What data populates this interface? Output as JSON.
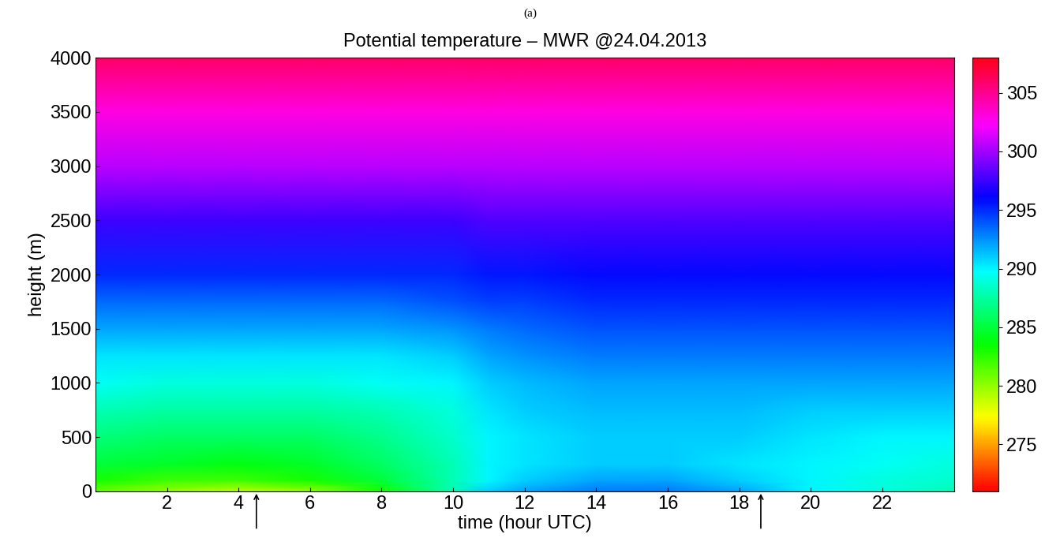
{
  "chart_data": {
    "type": "heatmap",
    "panel_label": "(a)",
    "title": "Potential temperature – MWR @24.04.2013",
    "xlabel": "time (hour UTC)",
    "ylabel": "height (m)",
    "x": [
      0,
      2,
      4,
      6,
      8,
      10,
      11,
      12,
      14,
      16,
      18,
      20,
      22,
      24
    ],
    "y": [
      0,
      100,
      250,
      500,
      750,
      1000,
      1250,
      1500,
      1750,
      2000,
      2500,
      3000,
      3500,
      4000
    ],
    "values": [
      [
        281,
        280,
        279,
        280,
        283,
        288,
        291,
        292,
        293,
        293,
        292,
        290,
        289,
        288
      ],
      [
        283,
        282,
        282,
        283,
        285,
        288,
        290,
        291,
        292,
        292,
        291,
        290,
        289,
        288.5
      ],
      [
        285,
        284.5,
        284,
        284.5,
        286,
        288,
        290,
        290.5,
        291,
        291,
        290.5,
        290,
        289.5,
        289
      ],
      [
        286.5,
        286,
        286,
        286,
        287,
        288.5,
        290,
        290.5,
        291,
        291,
        291,
        290.5,
        290,
        290
      ],
      [
        288,
        287.5,
        287.5,
        287.5,
        288,
        289,
        290.5,
        291,
        291.5,
        291.5,
        291.5,
        291,
        291,
        291
      ],
      [
        289.5,
        289,
        289,
        289,
        289.5,
        290,
        291,
        291.5,
        292,
        292,
        292,
        292,
        292,
        292
      ],
      [
        290.5,
        290.5,
        290.5,
        290.5,
        290.5,
        291,
        292,
        292.5,
        293,
        293,
        293,
        293,
        293,
        293
      ],
      [
        292,
        292,
        292,
        292,
        292,
        292.5,
        293,
        293.5,
        294,
        294,
        294,
        294,
        294,
        294
      ],
      [
        293.5,
        293.5,
        293.5,
        293.5,
        293.5,
        294,
        294.5,
        294.5,
        295,
        295,
        295,
        295,
        295,
        295
      ],
      [
        295,
        295,
        295,
        295,
        295,
        295,
        295.5,
        295.5,
        296,
        296,
        296,
        296,
        296,
        296
      ],
      [
        297.5,
        297.5,
        297.5,
        297.5,
        297.5,
        297.5,
        298,
        298,
        298,
        298,
        298,
        298,
        298,
        298
      ],
      [
        300.5,
        300.5,
        300.5,
        300.5,
        300.5,
        300.5,
        300.5,
        300.5,
        300.5,
        300.5,
        300.5,
        300.5,
        300.5,
        300.5
      ],
      [
        303,
        303,
        303,
        303,
        303,
        303,
        303,
        303,
        303,
        303,
        303,
        303,
        303,
        303
      ],
      [
        306,
        306,
        306,
        306,
        306,
        306,
        306,
        306,
        306,
        306,
        306,
        306,
        306,
        306
      ]
    ],
    "xlim": [
      0,
      24
    ],
    "ylim": [
      0,
      4000
    ],
    "xticks": [
      2,
      4,
      6,
      8,
      10,
      12,
      14,
      16,
      18,
      20,
      22
    ],
    "yticks": [
      0,
      500,
      1000,
      1500,
      2000,
      2500,
      3000,
      3500,
      4000
    ],
    "colorbar_range": [
      271,
      308
    ],
    "colorbar_ticks": [
      275,
      280,
      285,
      290,
      295,
      300,
      305
    ],
    "arrows": [
      4.5,
      18.6
    ],
    "color": "hsv"
  }
}
